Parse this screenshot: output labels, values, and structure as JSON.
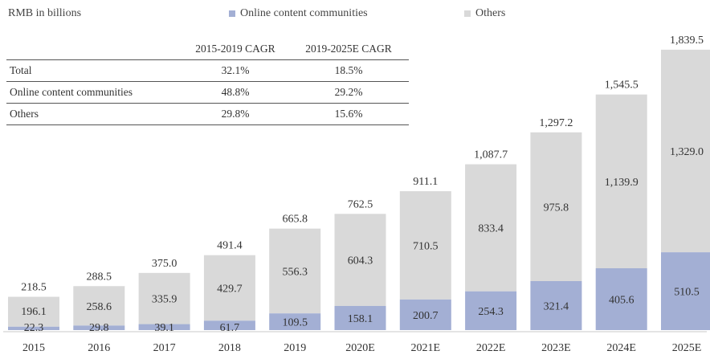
{
  "unit_label": "RMB in billions",
  "legend": [
    {
      "name": "Online content communities",
      "color": "#a3afd4"
    },
    {
      "name": "Others",
      "color": "#d9d9d9"
    }
  ],
  "cagr_table": {
    "headers": [
      "",
      "2015-2019 CAGR",
      "2019-2025E CAGR"
    ],
    "rows": [
      {
        "name": "Total",
        "v1": "32.1%",
        "v2": "18.5%"
      },
      {
        "name": "Online content communities",
        "v1": "48.8%",
        "v2": "29.2%"
      },
      {
        "name": "Others",
        "v1": "29.8%",
        "v2": "15.6%"
      }
    ]
  },
  "chart_data": {
    "type": "bar",
    "stacked": true,
    "ylabel": "RMB in billions",
    "categories": [
      "2015",
      "2016",
      "2017",
      "2018",
      "2019",
      "2020E",
      "2021E",
      "2022E",
      "2023E",
      "2024E",
      "2025E"
    ],
    "series": [
      {
        "name": "Online content communities",
        "color": "#a3afd4",
        "values": [
          22.3,
          29.8,
          39.1,
          61.7,
          109.5,
          158.1,
          200.7,
          254.3,
          321.4,
          405.6,
          510.5
        ],
        "labels": [
          "22.3",
          "29.8",
          "39.1",
          "61.7",
          "109.5",
          "158.1",
          "200.7",
          "254.3",
          "321.4",
          "405.6",
          "510.5"
        ]
      },
      {
        "name": "Others",
        "color": "#d9d9d9",
        "values": [
          196.1,
          258.6,
          335.9,
          429.7,
          556.3,
          604.3,
          710.5,
          833.4,
          975.8,
          1139.9,
          1329.0
        ],
        "labels": [
          "196.1",
          "258.6",
          "335.9",
          "429.7",
          "556.3",
          "604.3",
          "710.5",
          "833.4",
          "975.8",
          "1,139.9",
          "1,329.0"
        ]
      }
    ],
    "totals": [
      218.5,
      288.5,
      375.0,
      491.4,
      665.8,
      762.5,
      911.1,
      1087.7,
      1297.2,
      1545.5,
      1839.5
    ],
    "total_labels": [
      "218.5",
      "288.5",
      "375.0",
      "491.4",
      "665.8",
      "762.5",
      "911.1",
      "1,087.7",
      "1,297.2",
      "1,545.5",
      "1,839.5"
    ],
    "ylim": [
      0,
      1900
    ],
    "grid": false,
    "legend_position": "top"
  }
}
